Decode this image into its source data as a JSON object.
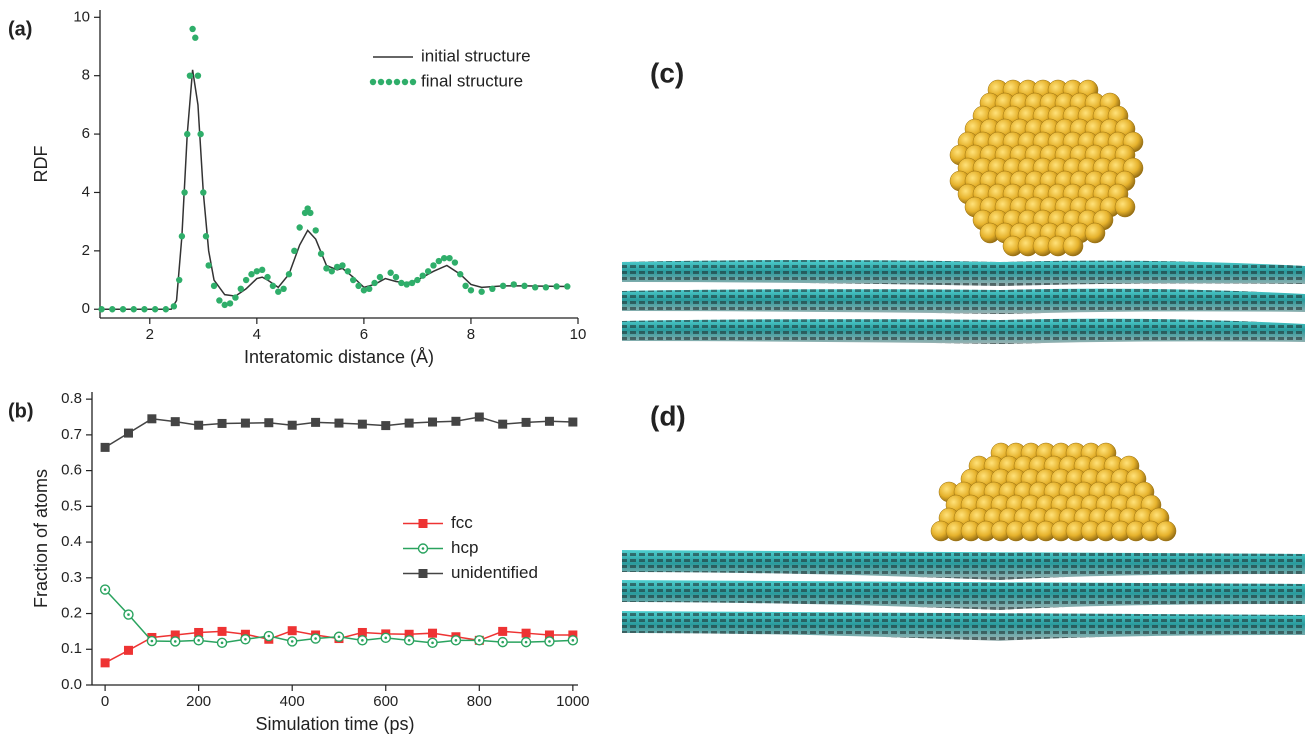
{
  "chart_data": [
    {
      "type": "line",
      "panel_label": "(a)",
      "x_label": "Interatomic distance (Å)",
      "y_label": "RDF",
      "xlim": [
        1.07,
        10
      ],
      "ylim": [
        -0.3,
        10.25
      ],
      "xticks": [
        2,
        4,
        6,
        8,
        10
      ],
      "yticks": [
        0,
        2,
        4,
        6,
        8,
        10
      ],
      "legend": "upper right",
      "series": [
        {
          "name": "initial structure",
          "color": "#333333",
          "line": true,
          "marker": "none",
          "x": [
            1.1,
            2.4,
            2.5,
            2.6,
            2.7,
            2.8,
            2.9,
            3.0,
            3.1,
            3.2,
            3.4,
            3.6,
            3.8,
            4.0,
            4.1,
            4.2,
            4.4,
            4.6,
            4.8,
            4.95,
            5.1,
            5.3,
            5.5,
            5.6,
            5.8,
            6.0,
            6.2,
            6.4,
            6.6,
            6.8,
            7.0,
            7.3,
            7.55,
            7.8,
            8.0,
            8.2,
            8.6,
            9.0,
            9.8
          ],
          "values": [
            0,
            0,
            0.3,
            2.5,
            6.0,
            8.2,
            7.0,
            4.0,
            2.0,
            1.0,
            0.5,
            0.45,
            0.7,
            1.05,
            1.1,
            1.0,
            0.75,
            1.2,
            2.2,
            2.7,
            2.4,
            1.5,
            1.35,
            1.4,
            1.1,
            0.75,
            0.85,
            1.05,
            0.95,
            0.9,
            1.0,
            1.3,
            1.5,
            1.2,
            0.85,
            0.75,
            0.8,
            0.8,
            0.78
          ]
        },
        {
          "name": "final structure",
          "color": "#2fae6a",
          "line": false,
          "marker": "dot",
          "x": [
            1.1,
            1.3,
            1.5,
            1.7,
            1.9,
            2.1,
            2.3,
            2.45,
            2.55,
            2.6,
            2.65,
            2.7,
            2.75,
            2.8,
            2.85,
            2.9,
            2.95,
            3.0,
            3.05,
            3.1,
            3.2,
            3.3,
            3.4,
            3.5,
            3.6,
            3.7,
            3.8,
            3.9,
            4.0,
            4.1,
            4.2,
            4.3,
            4.4,
            4.5,
            4.6,
            4.7,
            4.8,
            4.9,
            4.95,
            5.0,
            5.1,
            5.2,
            5.3,
            5.4,
            5.5,
            5.6,
            5.7,
            5.8,
            5.9,
            6.0,
            6.1,
            6.2,
            6.3,
            6.5,
            6.6,
            6.7,
            6.8,
            6.9,
            7.0,
            7.1,
            7.2,
            7.3,
            7.4,
            7.5,
            7.6,
            7.7,
            7.8,
            7.9,
            8.0,
            8.2,
            8.4,
            8.6,
            8.8,
            9.0,
            9.2,
            9.4,
            9.6,
            9.8
          ],
          "values": [
            0,
            0,
            0,
            0,
            0,
            0,
            0,
            0.1,
            1.0,
            2.5,
            4.0,
            6.0,
            8.0,
            9.6,
            9.3,
            8.0,
            6.0,
            4.0,
            2.5,
            1.5,
            0.8,
            0.3,
            0.15,
            0.2,
            0.4,
            0.7,
            1.0,
            1.2,
            1.3,
            1.35,
            1.1,
            0.8,
            0.6,
            0.7,
            1.2,
            2.0,
            2.8,
            3.3,
            3.45,
            3.3,
            2.7,
            1.9,
            1.4,
            1.3,
            1.45,
            1.5,
            1.3,
            1.0,
            0.8,
            0.65,
            0.7,
            0.9,
            1.1,
            1.25,
            1.1,
            0.9,
            0.85,
            0.9,
            1.0,
            1.15,
            1.3,
            1.5,
            1.65,
            1.75,
            1.75,
            1.6,
            1.2,
            0.8,
            0.65,
            0.6,
            0.7,
            0.8,
            0.85,
            0.8,
            0.75,
            0.75,
            0.78,
            0.78
          ]
        }
      ]
    },
    {
      "type": "line",
      "panel_label": "(b)",
      "x_label": "Simulation time (ps)",
      "y_label": "Fraction of atoms",
      "xlim": [
        -28,
        1011
      ],
      "ylim": [
        0,
        0.82
      ],
      "xticks": [
        0,
        200,
        400,
        600,
        800,
        1000
      ],
      "yticks": [
        {
          "value": 0,
          "label": "0.0"
        },
        0.1,
        0.2,
        0.3,
        0.4,
        0.5,
        0.6,
        0.7,
        0.8
      ],
      "legend": "center right",
      "x": [
        0,
        50,
        100,
        150,
        200,
        250,
        300,
        350,
        400,
        450,
        500,
        550,
        600,
        650,
        700,
        750,
        800,
        850,
        900,
        950,
        1000
      ],
      "series": [
        {
          "name": "fcc",
          "color": "#ee3333",
          "line": true,
          "marker": "square",
          "values": [
            0.062,
            0.097,
            0.133,
            0.14,
            0.147,
            0.15,
            0.142,
            0.128,
            0.152,
            0.14,
            0.13,
            0.147,
            0.143,
            0.142,
            0.145,
            0.135,
            0.125,
            0.15,
            0.145,
            0.14,
            0.14
          ]
        },
        {
          "name": "hcp",
          "color": "#2aa35f",
          "line": true,
          "marker": "circle-open",
          "values": [
            0.267,
            0.197,
            0.123,
            0.122,
            0.125,
            0.118,
            0.128,
            0.137,
            0.122,
            0.13,
            0.135,
            0.125,
            0.132,
            0.125,
            0.118,
            0.125,
            0.125,
            0.12,
            0.12,
            0.122,
            0.125
          ]
        },
        {
          "name": "unidentified",
          "color": "#444444",
          "line": true,
          "marker": "square",
          "values": [
            0.665,
            0.705,
            0.745,
            0.737,
            0.727,
            0.732,
            0.733,
            0.734,
            0.727,
            0.735,
            0.733,
            0.73,
            0.726,
            0.733,
            0.736,
            0.738,
            0.75,
            0.73,
            0.735,
            0.738,
            0.736
          ]
        }
      ]
    }
  ],
  "images": [
    {
      "label": "(c)"
    },
    {
      "label": "(d)"
    }
  ]
}
